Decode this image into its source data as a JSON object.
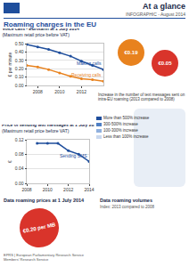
{
  "header": {
    "title": "At a glance",
    "subtitle": "INFOGRAPHIC - August 2014"
  },
  "main_title": "Roaming charges in the EU",
  "chart_data": [
    {
      "type": "line",
      "title": "Voice calls - Eurotariff at 1 July 2014",
      "subtitle": "(Maximum retail price before VAT)",
      "y_label": "€ per minute",
      "x": [
        2007,
        2008,
        2009,
        2010,
        2011,
        2012,
        2013,
        2014
      ],
      "series": [
        {
          "name": "Making calls",
          "color": "#1f4e9c",
          "values": [
            0.49,
            0.46,
            0.43,
            0.39,
            0.35,
            0.29,
            0.24,
            0.19
          ]
        },
        {
          "name": "Receiving calls",
          "color": "#e8821e",
          "values": [
            0.24,
            0.22,
            0.19,
            0.15,
            0.11,
            0.08,
            0.07,
            0.05
          ]
        }
      ],
      "xlim": [
        2007,
        2014
      ],
      "xticks": [
        2008,
        2010,
        2012
      ],
      "ylim": [
        0,
        0.5
      ],
      "yticks": [
        {
          "value": 0,
          "label": "0.00"
        },
        {
          "value": 0.1,
          "label": "0.10"
        },
        {
          "value": 0.2,
          "label": "0.20"
        },
        {
          "value": 0.3,
          "label": "0.30"
        },
        {
          "value": 0.4,
          "label": "0.40"
        },
        {
          "value": 0.5,
          "label": "0.50"
        }
      ],
      "grid": true
    },
    {
      "type": "line",
      "title": "Price of sending text messages at 1 July 2014",
      "subtitle": "(Maximum retail price before VAT)",
      "y_label": "€",
      "x": [
        2009,
        2010,
        2011,
        2012,
        2013,
        2014
      ],
      "series": [
        {
          "name": "Sending SMS",
          "color": "#1f4e9c",
          "values": [
            0.11,
            0.11,
            0.11,
            0.09,
            0.08,
            0.06
          ]
        }
      ],
      "xlim": [
        2008,
        2014
      ],
      "xticks": [
        2008,
        2010,
        2012,
        2014
      ],
      "ylim": [
        0,
        0.12
      ],
      "yticks": [
        {
          "value": 0,
          "label": "0.00"
        },
        {
          "value": 0.04,
          "label": "0.04"
        },
        {
          "value": 0.08,
          "label": "0.08"
        },
        {
          "value": 0.12,
          "label": "0.12"
        }
      ],
      "grid": true
    }
  ],
  "badges": [
    {
      "text": "€0.19",
      "color": "#e8821e"
    },
    {
      "text": "€0.05",
      "color": "#d9342b"
    },
    {
      "text": "€0.20 per MB",
      "color": "#d9342b"
    }
  ],
  "map": {
    "caption": "Increase in the number of text messages sent on intra-EU roaming (2013 compared to 2008)",
    "legend": [
      {
        "label": "More than 500% increase",
        "color": "#1f4e9c"
      },
      {
        "label": "300-500% increase",
        "color": "#4f7fc4"
      },
      {
        "label": "100-300% increase",
        "color": "#8fb0de"
      },
      {
        "label": "Less than 100% increase",
        "color": "#c9d8ef"
      }
    ]
  },
  "data_section": {
    "title": "Data roaming prices at 1 July 2014",
    "volumes_title": "Data roaming volumes",
    "volumes_subtitle": "Index: 2013 compared to 2008"
  },
  "footer": [
    "EPRS | European Parliamentary Research Service",
    "Members' Research Service"
  ]
}
